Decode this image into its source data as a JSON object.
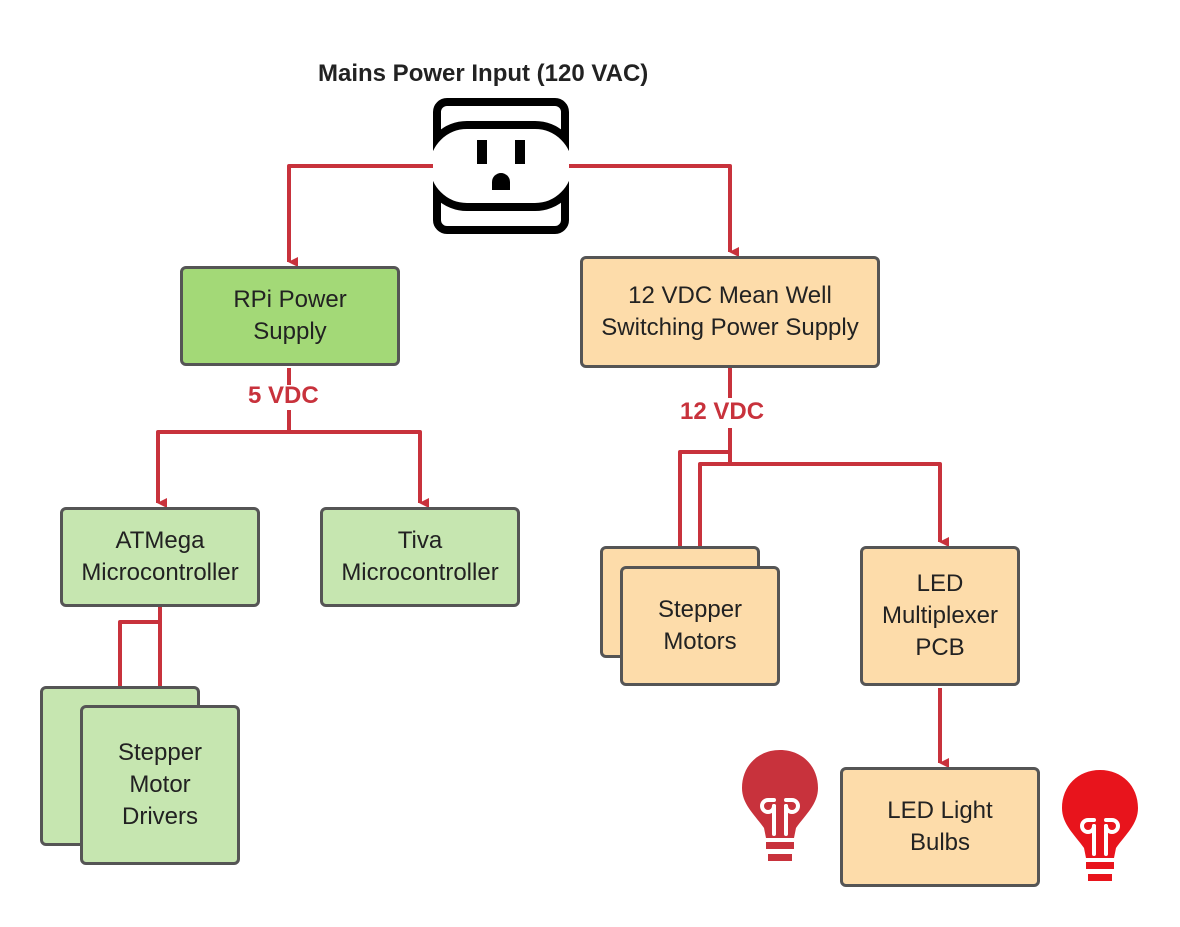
{
  "title": "Mains Power Input (120 VAC)",
  "colors": {
    "wire": "#c8323c",
    "voltage_text": "#c8323c",
    "rpi_supply_fill": "#a3d977",
    "controller_fill": "#c6e6b0",
    "power12_fill": "#fddcaa",
    "bulb_left": "#c8323c",
    "bulb_right": "#e8141c",
    "border": "#555555"
  },
  "icons": [
    "outlet-icon",
    "lightbulb-icon"
  ],
  "nodes": {
    "rpi_power": "RPi Power\nSupply",
    "mean_well": "12 VDC Mean Well\nSwitching Power Supply",
    "atmega": "ATMega\nMicrocontroller",
    "tiva": "Tiva\nMicrocontroller",
    "stepper_drivers": "Stepper\nMotor\nDrivers",
    "stepper_motors": "Stepper\nMotors",
    "led_mux": "LED\nMultiplexer\nPCB",
    "led_bulbs": "LED Light\nBulbs"
  },
  "voltages": {
    "five": "5 VDC",
    "twelve": "12 VDC"
  }
}
